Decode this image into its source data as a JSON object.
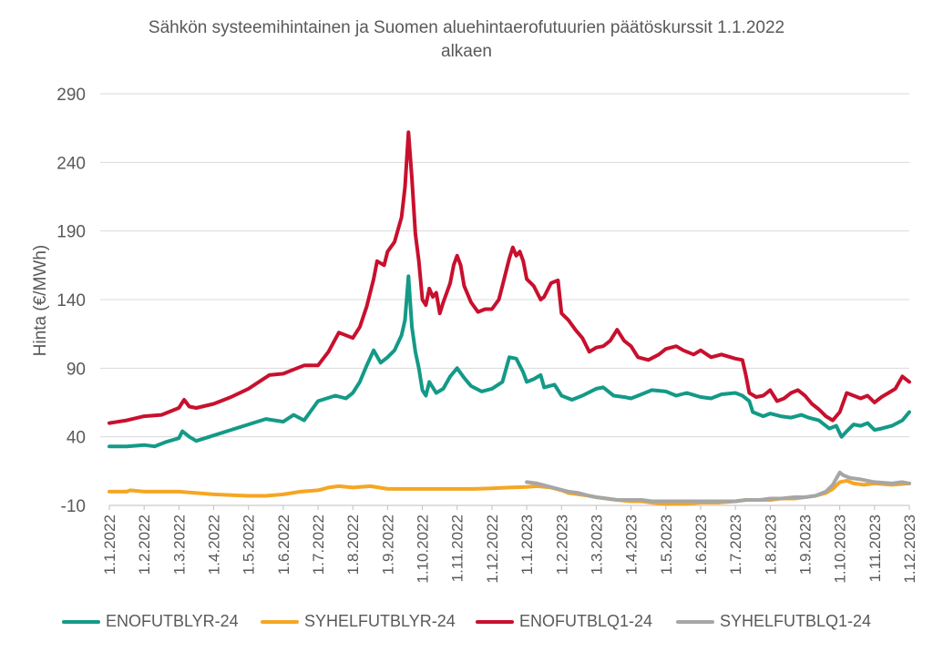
{
  "chart_data": {
    "type": "line",
    "title": "Sähkön systeemihintainen ja Suomen aluehintaerofutuurien päätöskurssit 1.1.2022 alkaen",
    "title_lines": [
      "Sähkön systeemihintainen ja Suomen aluehintaerofutuurien päätöskurssit 1.1.2022",
      "alkaen"
    ],
    "ylabel": "Hinta (€/MWh)",
    "xlabel": "",
    "ylim": [
      -10,
      290
    ],
    "yticks": [
      -10,
      40,
      90,
      140,
      190,
      240,
      290
    ],
    "x_unit": "months since 1.1.2022",
    "xlim": [
      0,
      23.0
    ],
    "xticks": [
      "1.1.2022",
      "1.2.2022",
      "1.3.2022",
      "1.4.2022",
      "1.5.2022",
      "1.6.2022",
      "1.7.2022",
      "1.8.2022",
      "1.9.2022",
      "1.10.2022",
      "1.11.2022",
      "1.12.2022",
      "1.1.2023",
      "1.2.2023",
      "1.3.2023",
      "1.4.2023",
      "1.5.2023",
      "1.6.2023",
      "1.7.2023",
      "1.8.2023",
      "1.9.2023",
      "1.10.2023",
      "1.11.2023",
      "1.12.2023"
    ],
    "grid": true,
    "legend_position": "bottom",
    "series": [
      {
        "name": "ENOFUTBLYR-24",
        "color": "#139A87",
        "points": [
          [
            0,
            33
          ],
          [
            0.5,
            33
          ],
          [
            1,
            34
          ],
          [
            1.3,
            33
          ],
          [
            1.6,
            36
          ],
          [
            2,
            39
          ],
          [
            2.1,
            44
          ],
          [
            2.3,
            40
          ],
          [
            2.5,
            37
          ],
          [
            3,
            41
          ],
          [
            3.5,
            45
          ],
          [
            4,
            49
          ],
          [
            4.5,
            53
          ],
          [
            5,
            51
          ],
          [
            5.3,
            56
          ],
          [
            5.6,
            52
          ],
          [
            6,
            66
          ],
          [
            6.5,
            70
          ],
          [
            6.8,
            68
          ],
          [
            7,
            72
          ],
          [
            7.2,
            80
          ],
          [
            7.4,
            92
          ],
          [
            7.6,
            103
          ],
          [
            7.8,
            94
          ],
          [
            8,
            98
          ],
          [
            8.2,
            103
          ],
          [
            8.4,
            114
          ],
          [
            8.5,
            125
          ],
          [
            8.6,
            157
          ],
          [
            8.7,
            120
          ],
          [
            8.8,
            102
          ],
          [
            8.9,
            90
          ],
          [
            9,
            74
          ],
          [
            9.1,
            70
          ],
          [
            9.2,
            80
          ],
          [
            9.4,
            72
          ],
          [
            9.6,
            75
          ],
          [
            9.8,
            84
          ],
          [
            10,
            90
          ],
          [
            10.2,
            83
          ],
          [
            10.4,
            77
          ],
          [
            10.7,
            73
          ],
          [
            11,
            75
          ],
          [
            11.3,
            80
          ],
          [
            11.5,
            98
          ],
          [
            11.7,
            97
          ],
          [
            11.9,
            87
          ],
          [
            12,
            80
          ],
          [
            12.2,
            82
          ],
          [
            12.4,
            85
          ],
          [
            12.5,
            76
          ],
          [
            12.8,
            78
          ],
          [
            13,
            70
          ],
          [
            13.3,
            67
          ],
          [
            13.6,
            70
          ],
          [
            14,
            75
          ],
          [
            14.2,
            76
          ],
          [
            14.5,
            70
          ],
          [
            14.8,
            69
          ],
          [
            15,
            68
          ],
          [
            15.3,
            71
          ],
          [
            15.6,
            74
          ],
          [
            16,
            73
          ],
          [
            16.3,
            70
          ],
          [
            16.6,
            72
          ],
          [
            17,
            69
          ],
          [
            17.3,
            68
          ],
          [
            17.6,
            71
          ],
          [
            18,
            72
          ],
          [
            18.2,
            70
          ],
          [
            18.4,
            66
          ],
          [
            18.5,
            58
          ],
          [
            18.8,
            55
          ],
          [
            19,
            57
          ],
          [
            19.3,
            55
          ],
          [
            19.6,
            54
          ],
          [
            19.9,
            56
          ],
          [
            20.1,
            54
          ],
          [
            20.4,
            52
          ],
          [
            20.7,
            46
          ],
          [
            20.9,
            48
          ],
          [
            21.05,
            40
          ],
          [
            21.2,
            44
          ],
          [
            21.4,
            49
          ],
          [
            21.6,
            48
          ],
          [
            21.8,
            50
          ],
          [
            22,
            45
          ],
          [
            22.2,
            46
          ],
          [
            22.5,
            48
          ],
          [
            22.8,
            52
          ],
          [
            23,
            58
          ]
        ]
      },
      {
        "name": "SYHELFUTBLYR-24",
        "color": "#F5A623",
        "points": [
          [
            0,
            0
          ],
          [
            0.5,
            0
          ],
          [
            0.6,
            1
          ],
          [
            1,
            0
          ],
          [
            2,
            0
          ],
          [
            3,
            -2
          ],
          [
            4,
            -3
          ],
          [
            4.5,
            -3
          ],
          [
            5,
            -2
          ],
          [
            5.5,
            0
          ],
          [
            6,
            1
          ],
          [
            6.3,
            3
          ],
          [
            6.6,
            4
          ],
          [
            7,
            3
          ],
          [
            7.5,
            4
          ],
          [
            8,
            2
          ],
          [
            8.5,
            2
          ],
          [
            9,
            2
          ],
          [
            9.5,
            2
          ],
          [
            10,
            2
          ],
          [
            10.5,
            2
          ],
          [
            11,
            2.5
          ],
          [
            11.5,
            3
          ],
          [
            12,
            3.5
          ],
          [
            12.3,
            4
          ],
          [
            12.7,
            3
          ],
          [
            13,
            1
          ],
          [
            13.2,
            -1
          ],
          [
            13.5,
            -2
          ],
          [
            13.8,
            -3
          ],
          [
            14,
            -4
          ],
          [
            14.3,
            -5
          ],
          [
            14.6,
            -6
          ],
          [
            15,
            -7
          ],
          [
            15.3,
            -7
          ],
          [
            15.6,
            -8
          ],
          [
            16,
            -9
          ],
          [
            16.5,
            -9
          ],
          [
            17,
            -8
          ],
          [
            17.5,
            -8
          ],
          [
            18,
            -7
          ],
          [
            18.3,
            -6
          ],
          [
            18.7,
            -6
          ],
          [
            19,
            -6
          ],
          [
            19.3,
            -5
          ],
          [
            19.7,
            -5
          ],
          [
            20,
            -4
          ],
          [
            20.3,
            -3
          ],
          [
            20.6,
            -1
          ],
          [
            20.8,
            2
          ],
          [
            21,
            7
          ],
          [
            21.2,
            8
          ],
          [
            21.4,
            6
          ],
          [
            21.7,
            5
          ],
          [
            22,
            6
          ],
          [
            22.5,
            5
          ],
          [
            23,
            6
          ]
        ]
      },
      {
        "name": "ENOFUTBLQ1-24",
        "color": "#C8102E",
        "points": [
          [
            0,
            50
          ],
          [
            0.5,
            52
          ],
          [
            1,
            55
          ],
          [
            1.5,
            56
          ],
          [
            2,
            61
          ],
          [
            2.15,
            67
          ],
          [
            2.3,
            62
          ],
          [
            2.5,
            61
          ],
          [
            3,
            64
          ],
          [
            3.5,
            69
          ],
          [
            4,
            75
          ],
          [
            4.3,
            80
          ],
          [
            4.6,
            85
          ],
          [
            5,
            86
          ],
          [
            5.3,
            89
          ],
          [
            5.6,
            92
          ],
          [
            6,
            92
          ],
          [
            6.3,
            102
          ],
          [
            6.6,
            116
          ],
          [
            7,
            112
          ],
          [
            7.2,
            120
          ],
          [
            7.4,
            135
          ],
          [
            7.6,
            155
          ],
          [
            7.7,
            168
          ],
          [
            7.9,
            165
          ],
          [
            8,
            175
          ],
          [
            8.2,
            182
          ],
          [
            8.4,
            200
          ],
          [
            8.5,
            222
          ],
          [
            8.6,
            262
          ],
          [
            8.7,
            228
          ],
          [
            8.8,
            188
          ],
          [
            8.9,
            168
          ],
          [
            9,
            140
          ],
          [
            9.1,
            136
          ],
          [
            9.2,
            148
          ],
          [
            9.3,
            142
          ],
          [
            9.4,
            145
          ],
          [
            9.5,
            130
          ],
          [
            9.6,
            138
          ],
          [
            9.8,
            152
          ],
          [
            9.9,
            165
          ],
          [
            10,
            172
          ],
          [
            10.1,
            165
          ],
          [
            10.2,
            150
          ],
          [
            10.4,
            138
          ],
          [
            10.6,
            131
          ],
          [
            10.8,
            133
          ],
          [
            11,
            133
          ],
          [
            11.2,
            140
          ],
          [
            11.3,
            150
          ],
          [
            11.5,
            170
          ],
          [
            11.6,
            178
          ],
          [
            11.7,
            172
          ],
          [
            11.8,
            175
          ],
          [
            11.9,
            168
          ],
          [
            12,
            155
          ],
          [
            12.2,
            150
          ],
          [
            12.4,
            140
          ],
          [
            12.5,
            142
          ],
          [
            12.7,
            152
          ],
          [
            12.9,
            154
          ],
          [
            13,
            130
          ],
          [
            13.2,
            125
          ],
          [
            13.4,
            118
          ],
          [
            13.6,
            112
          ],
          [
            13.8,
            102
          ],
          [
            14,
            105
          ],
          [
            14.2,
            106
          ],
          [
            14.4,
            110
          ],
          [
            14.6,
            118
          ],
          [
            14.8,
            110
          ],
          [
            15,
            106
          ],
          [
            15.2,
            98
          ],
          [
            15.5,
            96
          ],
          [
            15.8,
            100
          ],
          [
            16,
            104
          ],
          [
            16.3,
            106
          ],
          [
            16.5,
            103
          ],
          [
            16.8,
            100
          ],
          [
            17,
            103
          ],
          [
            17.3,
            98
          ],
          [
            17.6,
            100
          ],
          [
            18,
            97
          ],
          [
            18.2,
            96
          ],
          [
            18.3,
            85
          ],
          [
            18.4,
            72
          ],
          [
            18.6,
            69
          ],
          [
            18.8,
            70
          ],
          [
            19,
            74
          ],
          [
            19.2,
            66
          ],
          [
            19.4,
            68
          ],
          [
            19.6,
            72
          ],
          [
            19.8,
            74
          ],
          [
            20,
            70
          ],
          [
            20.2,
            64
          ],
          [
            20.4,
            60
          ],
          [
            20.6,
            55
          ],
          [
            20.8,
            52
          ],
          [
            21,
            58
          ],
          [
            21.2,
            72
          ],
          [
            21.4,
            70
          ],
          [
            21.6,
            68
          ],
          [
            21.8,
            70
          ],
          [
            22,
            65
          ],
          [
            22.2,
            69
          ],
          [
            22.4,
            72
          ],
          [
            22.6,
            75
          ],
          [
            22.8,
            84
          ],
          [
            23,
            80
          ]
        ]
      },
      {
        "name": "SYHELFUTBLQ1-24",
        "color": "#A6A6A6",
        "points": [
          [
            12,
            7
          ],
          [
            12.3,
            6
          ],
          [
            12.6,
            4
          ],
          [
            12.9,
            2
          ],
          [
            13.2,
            0
          ],
          [
            13.5,
            -1
          ],
          [
            13.8,
            -3
          ],
          [
            14,
            -4
          ],
          [
            14.3,
            -5
          ],
          [
            14.6,
            -6
          ],
          [
            15,
            -6
          ],
          [
            15.3,
            -6
          ],
          [
            15.6,
            -7
          ],
          [
            16,
            -7
          ],
          [
            16.5,
            -7
          ],
          [
            17,
            -7
          ],
          [
            17.5,
            -7
          ],
          [
            18,
            -7
          ],
          [
            18.3,
            -6
          ],
          [
            18.7,
            -6
          ],
          [
            19,
            -5
          ],
          [
            19.3,
            -5
          ],
          [
            19.7,
            -4
          ],
          [
            20,
            -4
          ],
          [
            20.3,
            -3
          ],
          [
            20.6,
            0
          ],
          [
            20.8,
            5
          ],
          [
            21,
            14
          ],
          [
            21.1,
            12
          ],
          [
            21.3,
            10
          ],
          [
            21.6,
            9
          ],
          [
            21.8,
            8
          ],
          [
            22,
            7
          ],
          [
            22.5,
            6
          ],
          [
            22.8,
            7
          ],
          [
            23,
            6
          ]
        ]
      }
    ]
  }
}
